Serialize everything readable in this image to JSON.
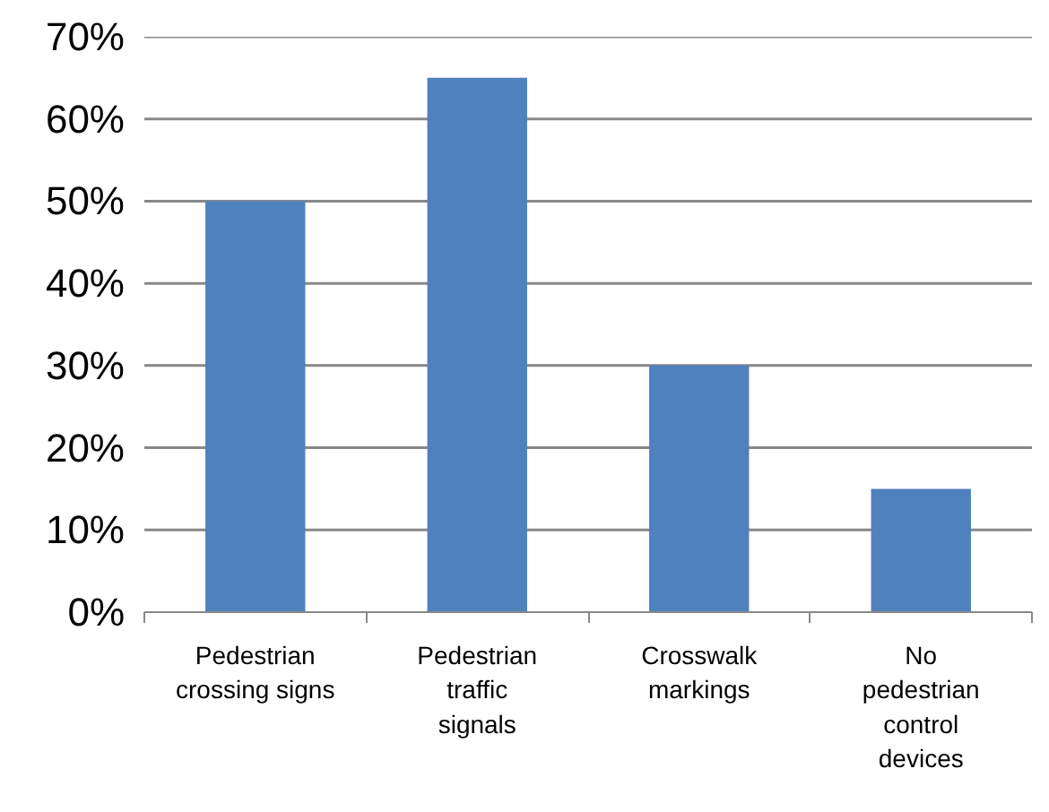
{
  "chart_data": {
    "type": "bar",
    "categories": [
      "Pedestrian\ncrossing signs",
      "Pedestrian\ntraffic\nsignals",
      "Crosswalk\nmarkings",
      "No\npedestrian\ncontrol\ndevices"
    ],
    "values": [
      50,
      65,
      30,
      15
    ],
    "color": "#4f81bd",
    "ylim": [
      0,
      70
    ],
    "yticks": [
      {
        "value": 0,
        "label": "0%"
      },
      {
        "value": 10,
        "label": "10%"
      },
      {
        "value": 20,
        "label": "20%"
      },
      {
        "value": 30,
        "label": "30%"
      },
      {
        "value": 40,
        "label": "40%"
      },
      {
        "value": 50,
        "label": "50%"
      },
      {
        "value": 60,
        "label": "60%"
      },
      {
        "value": 70,
        "label": "70%"
      }
    ],
    "grid": "y"
  }
}
